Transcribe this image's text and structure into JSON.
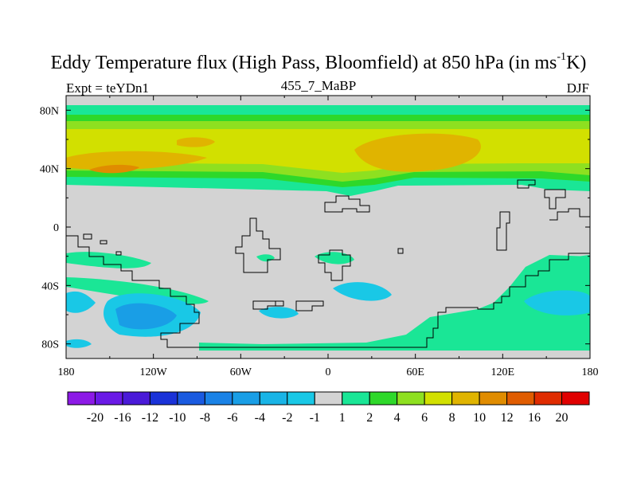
{
  "figure": {
    "title_main": "Eddy Temperature flux (High Pass, Bloomfield) at 850 hPa (in ms",
    "title_sup": "-1",
    "title_end": "K)",
    "left_label": "Expt = teYDn1",
    "center_label": "455_7_MaBP",
    "right_label": "DJF"
  },
  "chart_data": {
    "type": "heatmap",
    "title": "Eddy Temperature flux (High Pass, Bloomfield) at 850 hPa (in ms-1K)",
    "projection": "cylindrical equidistant",
    "x_axis": {
      "range": [
        -180,
        180
      ],
      "ticks": [
        -180,
        -120,
        -60,
        0,
        60,
        120,
        180
      ],
      "tick_labels": [
        "180",
        "120W",
        "60W",
        "0",
        "60E",
        "120E",
        "180"
      ]
    },
    "y_axis": {
      "range": [
        -90,
        90
      ],
      "ticks": [
        80,
        40,
        0,
        -40,
        -80
      ],
      "tick_labels": [
        "80N",
        "40N",
        "0",
        "40S",
        "80S"
      ]
    },
    "colorbar": {
      "labels": [
        "-20",
        "-16",
        "-12",
        "-10",
        "-8",
        "-6",
        "-4",
        "-2",
        "-1",
        "1",
        "2",
        "4",
        "6",
        "8",
        "10",
        "12",
        "16",
        "20"
      ],
      "colors": [
        "#8c1ae6",
        "#6a1ae6",
        "#4a1ad8",
        "#1a32d8",
        "#1a5ae0",
        "#1a82e6",
        "#199ee6",
        "#19b4e6",
        "#19c8e6",
        "#d3d3d3",
        "#1ae696",
        "#2ed82a",
        "#8ee020",
        "#d2e000",
        "#e0b400",
        "#e08c00",
        "#e05c00",
        "#e02c00",
        "#e00000"
      ]
    },
    "regions": [
      {
        "name": "northern-band",
        "value_range": "2 to 6",
        "lat_range": [
          22,
          88
        ],
        "lon_range": [
          -180,
          180
        ]
      },
      {
        "name": "atlantic-storm-track",
        "value_range": "8 to 10",
        "lat": 40,
        "lon": -140
      },
      {
        "name": "asian-storm-track",
        "value_range": "8 to 10",
        "lat": 48,
        "lon": 50
      },
      {
        "name": "southern-pacific-negative",
        "value_range": "-4 to -6",
        "lat": -55,
        "lon": -140
      },
      {
        "name": "southern-indian-negative",
        "value_range": "-2 to -4",
        "lat": -50,
        "lon": 165
      },
      {
        "name": "antarctic-positive-band",
        "value_range": "1 to 2",
        "lat": -62,
        "lon": 100
      }
    ]
  }
}
